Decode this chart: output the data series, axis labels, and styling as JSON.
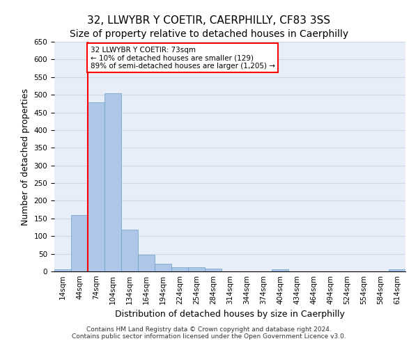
{
  "title": "32, LLWYBR Y COETIR, CAERPHILLY, CF83 3SS",
  "subtitle": "Size of property relative to detached houses in Caerphilly",
  "xlabel": "Distribution of detached houses by size in Caerphilly",
  "ylabel": "Number of detached properties",
  "footnote1": "Contains HM Land Registry data © Crown copyright and database right 2024.",
  "footnote2": "Contains public sector information licensed under the Open Government Licence v3.0.",
  "categories": [
    "14sqm",
    "44sqm",
    "74sqm",
    "104sqm",
    "134sqm",
    "164sqm",
    "194sqm",
    "224sqm",
    "254sqm",
    "284sqm",
    "314sqm",
    "344sqm",
    "374sqm",
    "404sqm",
    "434sqm",
    "464sqm",
    "494sqm",
    "524sqm",
    "554sqm",
    "584sqm",
    "614sqm"
  ],
  "values": [
    5,
    160,
    478,
    505,
    118,
    48,
    22,
    12,
    12,
    8,
    0,
    0,
    0,
    5,
    0,
    0,
    0,
    0,
    0,
    0,
    5
  ],
  "bar_color": "#aec6e8",
  "bar_edge_color": "#6a9ec2",
  "grid_color": "#d0d8e8",
  "background_color": "#e8eef8",
  "ylim": [
    0,
    650
  ],
  "yticks": [
    0,
    50,
    100,
    150,
    200,
    250,
    300,
    350,
    400,
    450,
    500,
    550,
    600,
    650
  ],
  "property_label": "32 LLWYBR Y COETIR: 73sqm",
  "annotation_line1": "← 10% of detached houses are smaller (129)",
  "annotation_line2": "89% of semi-detached houses are larger (1,205) →",
  "vline_bar_index": 2,
  "title_fontsize": 11,
  "subtitle_fontsize": 10,
  "tick_fontsize": 7.5,
  "label_fontsize": 9,
  "footnote_fontsize": 6.5
}
